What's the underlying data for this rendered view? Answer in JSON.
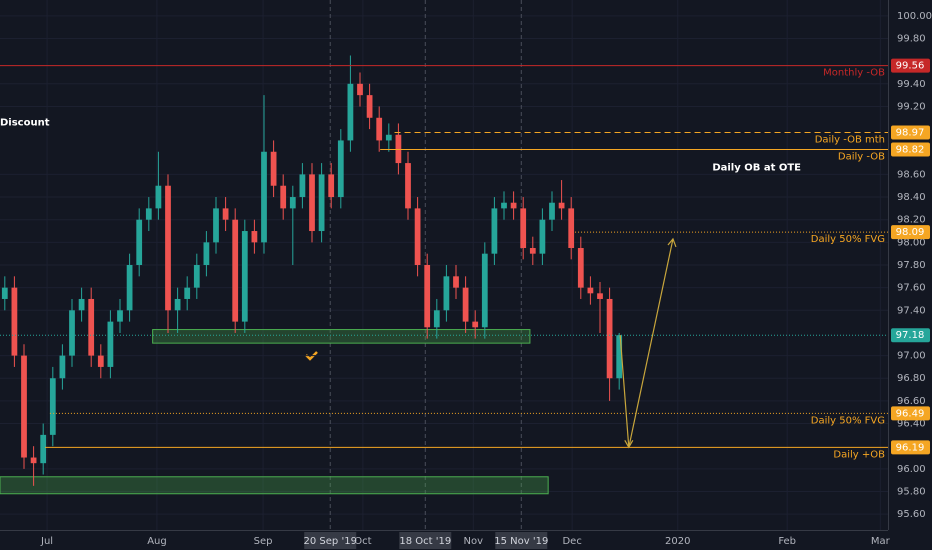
{
  "chart_data": {
    "type": "candlestick",
    "ylim": [
      95.46,
      100.14
    ],
    "xlim": [
      -0.5,
      92
    ],
    "up_color": "#26a69a",
    "down_color": "#ef5350",
    "open": [
      97.5,
      97.6,
      97.0,
      96.1,
      96.05,
      96.3,
      96.8,
      97.0,
      97.4,
      97.5,
      97.0,
      96.9,
      97.3,
      97.4,
      97.8,
      98.2,
      98.3,
      98.5,
      97.4,
      97.5,
      97.6,
      97.8,
      98.0,
      98.3,
      98.2,
      97.3,
      98.1,
      98.0,
      98.8,
      98.5,
      98.3,
      98.4,
      98.6,
      98.1,
      98.6,
      98.4,
      98.9,
      99.4,
      99.3,
      99.1,
      98.9,
      98.95,
      98.7,
      98.3,
      97.8,
      97.25,
      97.4,
      97.7,
      97.6,
      97.3,
      97.25,
      97.9,
      98.3,
      98.35,
      98.3,
      97.95,
      97.9,
      98.2,
      98.35,
      98.3,
      97.95,
      97.6,
      97.55,
      97.5,
      96.8
    ],
    "high": [
      97.7,
      97.7,
      97.1,
      96.2,
      96.4,
      96.9,
      97.1,
      97.5,
      97.6,
      97.6,
      97.1,
      97.4,
      97.5,
      97.9,
      98.3,
      98.4,
      98.8,
      98.6,
      97.6,
      97.7,
      97.9,
      98.1,
      98.4,
      98.4,
      98.3,
      98.2,
      98.2,
      99.3,
      98.9,
      98.6,
      98.5,
      98.7,
      98.7,
      98.7,
      98.7,
      99.0,
      99.65,
      99.5,
      99.4,
      99.2,
      99.05,
      99.05,
      98.8,
      98.4,
      97.9,
      97.5,
      97.8,
      97.8,
      97.7,
      97.4,
      98.0,
      98.4,
      98.45,
      98.45,
      98.4,
      98.05,
      98.3,
      98.45,
      98.55,
      98.4,
      98.05,
      97.7,
      97.65,
      97.6,
      97.2
    ],
    "low": [
      97.4,
      96.9,
      96.0,
      95.85,
      95.95,
      96.2,
      96.7,
      96.9,
      97.3,
      96.9,
      96.8,
      96.8,
      97.2,
      97.3,
      97.7,
      98.1,
      98.2,
      97.2,
      97.2,
      97.4,
      97.5,
      97.7,
      97.9,
      98.1,
      97.2,
      97.2,
      97.9,
      97.9,
      98.4,
      98.2,
      97.8,
      98.3,
      98.0,
      98.0,
      98.3,
      98.3,
      98.8,
      99.2,
      99.0,
      98.8,
      98.8,
      98.6,
      98.2,
      97.7,
      97.15,
      97.15,
      97.3,
      97.5,
      97.2,
      97.15,
      97.15,
      97.8,
      98.2,
      98.2,
      97.85,
      97.8,
      97.8,
      98.1,
      98.2,
      97.85,
      97.5,
      97.45,
      97.2,
      96.6,
      96.7
    ],
    "close": [
      97.6,
      97.0,
      96.1,
      96.05,
      96.3,
      96.8,
      97.0,
      97.4,
      97.5,
      97.0,
      96.9,
      97.3,
      97.4,
      97.8,
      98.2,
      98.3,
      98.5,
      97.4,
      97.5,
      97.6,
      97.8,
      98.0,
      98.3,
      98.2,
      97.3,
      98.1,
      98.0,
      98.8,
      98.5,
      98.3,
      98.4,
      98.6,
      98.1,
      98.6,
      98.4,
      98.9,
      99.4,
      99.3,
      99.1,
      98.9,
      98.95,
      98.7,
      98.3,
      97.8,
      97.25,
      97.4,
      97.7,
      97.6,
      97.3,
      97.25,
      97.9,
      98.3,
      98.35,
      98.3,
      97.95,
      97.9,
      98.2,
      98.35,
      98.3,
      97.95,
      97.6,
      97.55,
      97.5,
      96.8,
      97.18
    ],
    "yticks": [
      {
        "value": 100.0,
        "label": "100.00"
      },
      {
        "value": 99.8,
        "label": "99.80"
      },
      {
        "value": 99.4,
        "label": "99.40"
      },
      {
        "value": 99.2,
        "label": "99.20"
      },
      {
        "value": 98.6,
        "label": "98.60"
      },
      {
        "value": 98.4,
        "label": "98.40"
      },
      {
        "value": 98.2,
        "label": "98.20"
      },
      {
        "value": 98.0,
        "label": "98.00"
      },
      {
        "value": 97.8,
        "label": "97.80"
      },
      {
        "value": 97.6,
        "label": "97.60"
      },
      {
        "value": 97.4,
        "label": "97.40"
      },
      {
        "value": 97.0,
        "label": "97.00"
      },
      {
        "value": 96.8,
        "label": "96.80"
      },
      {
        "value": 96.6,
        "label": "96.60"
      },
      {
        "value": 96.4,
        "label": "96.40"
      },
      {
        "value": 96.0,
        "label": "96.00"
      },
      {
        "value": 95.8,
        "label": "95.80"
      },
      {
        "value": 95.6,
        "label": "95.60"
      }
    ],
    "xticks": [
      {
        "value": 4.4,
        "label": "Jul"
      },
      {
        "value": 15.85,
        "label": "Aug"
      },
      {
        "value": 26.9,
        "label": "Sep"
      },
      {
        "value": 37.3,
        "label": "Oct"
      },
      {
        "value": 48.8,
        "label": "Nov"
      },
      {
        "value": 59.1,
        "label": "Dec"
      },
      {
        "value": 70.1,
        "label": "2020"
      },
      {
        "value": 81.5,
        "label": "Feb"
      },
      {
        "value": 91.2,
        "label": "Mar"
      }
    ],
    "markers": [
      {
        "value": 33.9,
        "label": "20 Sep '19"
      },
      {
        "value": 43.8,
        "label": "18 Oct '19"
      },
      {
        "value": 53.8,
        "label": "15 Nov '19"
      }
    ],
    "levels": [
      {
        "value": 99.56,
        "label": "99.56",
        "name": "Monthly -OB",
        "color": "#c62828",
        "style": "solid",
        "from": -0.5
      },
      {
        "value": 98.97,
        "label": "98.97",
        "name": "Daily -OB mth",
        "color": "#f5a623",
        "style": "dashed",
        "from": 40.6
      },
      {
        "value": 98.82,
        "label": "98.82",
        "name": "Daily -OB",
        "color": "#f5a623",
        "style": "solid",
        "from": 39.1
      },
      {
        "value": 98.09,
        "label": "98.09",
        "name": "Daily 50% FVG",
        "color": "#f5a623",
        "style": "dotted",
        "from": 59.4
      },
      {
        "value": 97.18,
        "label": "97.18",
        "color": "#26a69a",
        "style": "dotted",
        "from": -0.5
      },
      {
        "value": 96.49,
        "label": "96.49",
        "name": "Daily 50% FVG",
        "color": "#f5a623",
        "style": "dotted",
        "from": 4.7
      },
      {
        "value": 96.19,
        "label": "96.19",
        "name": "Daily +OB",
        "color": "#f5a623",
        "style": "solid",
        "from": 4.2
      }
    ],
    "zones": [
      {
        "from": 15.4,
        "to": 54.7,
        "low": 97.11,
        "high": 97.23
      },
      {
        "from": -0.5,
        "to": 56.6,
        "low": 95.78,
        "high": 95.93
      }
    ],
    "arrow": {
      "x": [
        64.1,
        65.0,
        69.6
      ],
      "y": [
        97.18,
        96.19,
        98.03
      ]
    },
    "annotations": [
      {
        "text": "Discount",
        "x": -0.5,
        "y": 99.06
      },
      {
        "text": "Daily OB at OTE",
        "x": 73.7,
        "y": 98.66
      }
    ]
  }
}
